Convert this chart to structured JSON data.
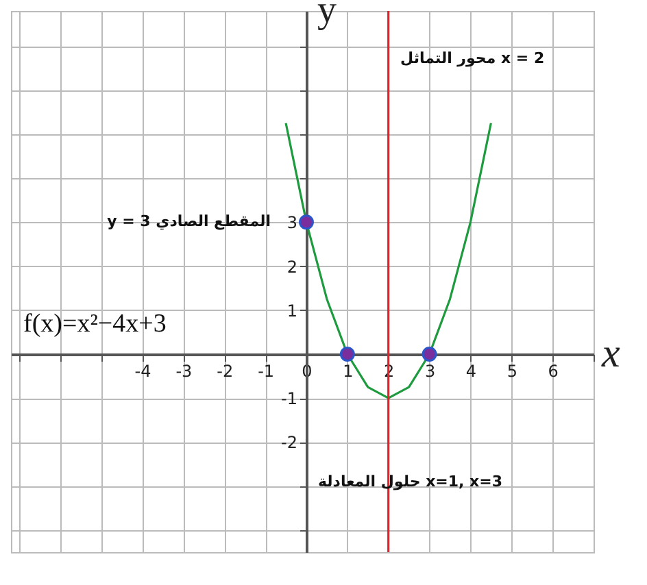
{
  "chart_data": {
    "type": "line",
    "xlabel": "x",
    "ylabel": "y",
    "xlim": [
      -7.2,
      7
    ],
    "ylim": [
      -4.5,
      7.8
    ],
    "xticks": [
      {
        "value": -7,
        "label": null
      },
      {
        "value": -6,
        "label": null
      },
      {
        "value": -5,
        "label": null
      },
      -4,
      -3,
      -2,
      -1,
      0,
      1,
      2,
      3,
      4,
      5,
      6,
      {
        "value": 7,
        "label": null
      }
    ],
    "yticks": [
      {
        "value": -4,
        "label": null
      },
      {
        "value": -3,
        "label": null
      },
      -2,
      -1,
      {
        "value": 0,
        "label": null
      },
      1,
      2,
      3,
      {
        "value": 4,
        "label": null
      },
      {
        "value": 5,
        "label": null
      },
      {
        "value": 6,
        "label": null
      },
      {
        "value": 7,
        "label": null
      }
    ],
    "grid": true,
    "series": [
      {
        "type": "line",
        "color": "#1e9b3e",
        "line_style": "solid",
        "x": [
          -0.5,
          0,
          0.5,
          1,
          1.5,
          2,
          2.5,
          3,
          3.5,
          4,
          4.5
        ],
        "values": [
          5.25,
          3,
          1.25,
          0,
          -0.75,
          -1,
          -0.75,
          0,
          1.25,
          3,
          5.25
        ]
      },
      {
        "type": "scatter",
        "color": "#7a2d9c",
        "marker": "circle",
        "x": [
          0,
          1,
          3
        ],
        "values": [
          3,
          0,
          0
        ]
      }
    ],
    "ref_lines": [
      {
        "axis": "x",
        "value": 2,
        "color": "#e0232a"
      }
    ],
    "annotations": [
      "محور التماثل x = 2",
      {
        "text": "y = 3 المقطع الصادي",
        "x": 0,
        "y": 3
      },
      "f(x)=x²−4x+3",
      "حلول المعادلة x=1,  x=3"
    ]
  }
}
